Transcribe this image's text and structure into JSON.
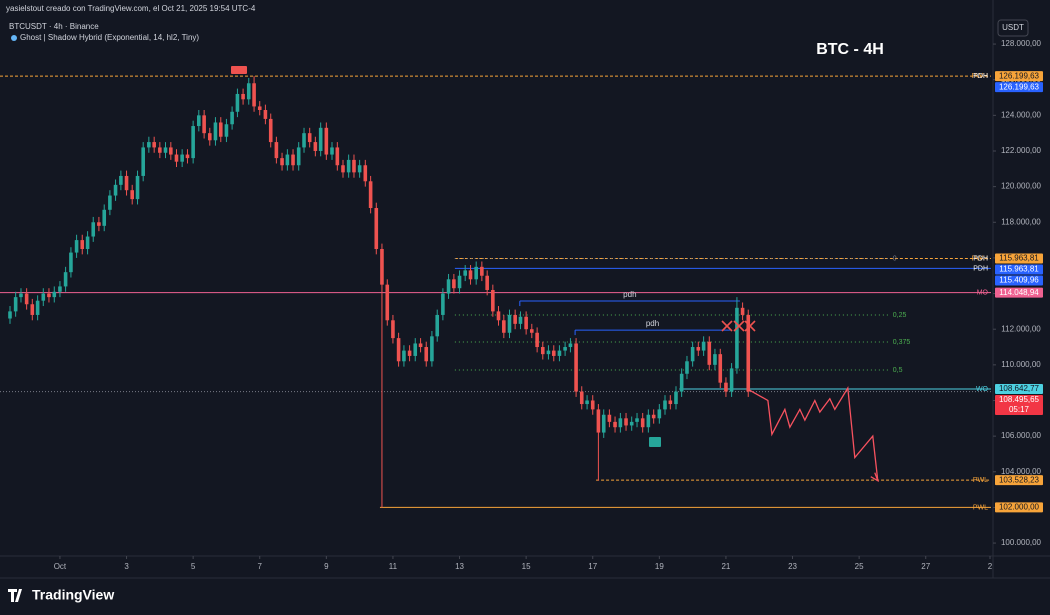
{
  "header": {
    "author_line": "yasielstout creado con TradingView.com, el Oct 21, 2025 19:54 UTC-4",
    "symbol_line": "BTCUSDT · 4h · Binance",
    "indicator": "Ghost | Shadow Hybrid (Exponential, 14, hl2, Tiny)"
  },
  "footer": {
    "brand": "TradingView"
  },
  "chart_data": {
    "type": "candlestick",
    "title": "BTC - 4H",
    "currency": "USDT",
    "up_color": "#26a69a",
    "down_color": "#ef5350",
    "grid": false,
    "x": [
      -0.5,
      -0.33,
      -0.17,
      0,
      0.17,
      0.33,
      0.5,
      0.67,
      0.83,
      1,
      1.17,
      1.33,
      1.5,
      1.67,
      1.83,
      2,
      2.17,
      2.33,
      2.5,
      2.67,
      2.83,
      3,
      3.17,
      3.33,
      3.5,
      3.67,
      3.83,
      4,
      4.17,
      4.33,
      4.5,
      4.67,
      4.83,
      5,
      5.17,
      5.33,
      5.5,
      5.67,
      5.83,
      6,
      6.17,
      6.33,
      6.5,
      6.67,
      6.83,
      7,
      7.17,
      7.33,
      7.5,
      7.67,
      7.83,
      8,
      8.17,
      8.33,
      8.5,
      8.67,
      8.83,
      9,
      9.17,
      9.33,
      9.5,
      9.67,
      9.83,
      10,
      10.17,
      10.33,
      10.5,
      10.67,
      10.83,
      11,
      11.17,
      11.33,
      11.5,
      11.67,
      11.83,
      12,
      12.17,
      12.33,
      12.5,
      12.67,
      12.83,
      13,
      13.17,
      13.33,
      13.5,
      13.67,
      13.83,
      14,
      14.17,
      14.33,
      14.5,
      14.67,
      14.83,
      15,
      15.17,
      15.33,
      15.5,
      15.67,
      15.83,
      16,
      16.17,
      16.33,
      16.5,
      16.67,
      16.83,
      17,
      17.17,
      17.33,
      17.5,
      17.67,
      17.83,
      18,
      18.17,
      18.33,
      18.5,
      18.67,
      18.83,
      19,
      19.17,
      19.33,
      19.5,
      19.67,
      19.83,
      20,
      20.17,
      20.33,
      20.5,
      20.67,
      20.83,
      21,
      21.17,
      21.33,
      21.5,
      21.67
    ],
    "open": [
      112600,
      113000,
      113800,
      114000,
      113400,
      112800,
      113600,
      114000,
      113800,
      114100,
      114400,
      115200,
      116300,
      117000,
      116500,
      117200,
      118000,
      117800,
      118700,
      119500,
      120100,
      120600,
      119800,
      119300,
      120600,
      122200,
      122500,
      122200,
      121900,
      122200,
      121800,
      121400,
      121800,
      121600,
      123400,
      124000,
      123000,
      122600,
      123600,
      122800,
      123500,
      124200,
      125200,
      124900,
      125800,
      124500,
      124300,
      123800,
      122500,
      121600,
      121200,
      121800,
      121200,
      122200,
      123000,
      122500,
      122000,
      123300,
      121800,
      122200,
      121200,
      120800,
      121500,
      120800,
      121200,
      120300,
      118800,
      116500,
      114500,
      112500,
      111500,
      110200,
      110800,
      110500,
      111200,
      111000,
      110200,
      111600,
      112800,
      114000,
      114800,
      114300,
      115000,
      115300,
      114800,
      115500,
      115000,
      114200,
      113000,
      112500,
      111800,
      112800,
      112300,
      112700,
      112000,
      111800,
      111000,
      110600,
      110800,
      110500,
      110800,
      111000,
      111200,
      108500,
      107800,
      108000,
      107500,
      106200,
      107200,
      106800,
      106500,
      107000,
      106600,
      106800,
      107000,
      106500,
      107200,
      107000,
      107500,
      108000,
      107800,
      108500,
      109500,
      110200,
      111000,
      110800,
      111300,
      110000,
      110600,
      109000,
      108500,
      109800,
      113200,
      112800
    ],
    "high": [
      113300,
      114100,
      114300,
      114300,
      113700,
      113900,
      114300,
      114300,
      114400,
      114700,
      115500,
      116600,
      117300,
      117300,
      117500,
      118300,
      118300,
      119000,
      119800,
      120400,
      120900,
      120900,
      120100,
      120900,
      122500,
      122800,
      122800,
      122500,
      122500,
      122500,
      122100,
      122100,
      122100,
      123700,
      124300,
      124300,
      123300,
      123900,
      123900,
      123800,
      124500,
      125500,
      125500,
      126100,
      126200,
      124800,
      124600,
      124100,
      122800,
      121900,
      122100,
      122100,
      122500,
      123300,
      123300,
      122800,
      123600,
      123600,
      122500,
      122500,
      121500,
      121800,
      121800,
      121500,
      121500,
      120600,
      119100,
      116800,
      114800,
      112800,
      111800,
      111100,
      111100,
      111500,
      111500,
      111300,
      111900,
      113100,
      114300,
      115100,
      115100,
      115300,
      115600,
      115600,
      115800,
      115800,
      115300,
      114500,
      113300,
      112800,
      113100,
      113100,
      113000,
      113000,
      112300,
      112100,
      111300,
      111100,
      111100,
      111100,
      111300,
      111500,
      111500,
      108800,
      108300,
      108300,
      107800,
      107500,
      107500,
      107100,
      107300,
      107300,
      107100,
      107300,
      107300,
      107500,
      107500,
      107800,
      108300,
      108300,
      108800,
      109800,
      110500,
      111300,
      111300,
      111600,
      111600,
      110900,
      110900,
      109300,
      110100,
      113800,
      113500,
      113100
    ],
    "low": [
      112300,
      112700,
      113500,
      113100,
      112500,
      112500,
      113300,
      113500,
      113500,
      113800,
      114100,
      114900,
      116000,
      116200,
      116200,
      116900,
      117500,
      117500,
      118400,
      119200,
      119800,
      119500,
      119000,
      119000,
      120300,
      121900,
      121900,
      121600,
      121600,
      121500,
      121100,
      121100,
      121300,
      121300,
      123100,
      122700,
      122300,
      122300,
      122500,
      122500,
      123200,
      123900,
      124600,
      124600,
      124200,
      124000,
      123500,
      122200,
      121300,
      120900,
      120900,
      120900,
      120900,
      121900,
      122200,
      121700,
      121700,
      121500,
      121500,
      120900,
      120500,
      120500,
      120500,
      120500,
      120000,
      118500,
      116200,
      102000,
      112200,
      111200,
      109900,
      109900,
      110200,
      110200,
      110700,
      109900,
      109900,
      111300,
      112500,
      113700,
      114000,
      114000,
      114700,
      114500,
      114500,
      114700,
      113900,
      112700,
      112200,
      111500,
      111500,
      112000,
      112000,
      111700,
      111500,
      110700,
      110300,
      110300,
      110200,
      110200,
      110500,
      110700,
      108200,
      107500,
      107500,
      107200,
      103500,
      105900,
      106500,
      106200,
      106200,
      106300,
      106300,
      106500,
      106200,
      106200,
      106700,
      106700,
      107200,
      107500,
      107500,
      108200,
      109200,
      109900,
      110500,
      110500,
      109700,
      109700,
      108700,
      108200,
      108200,
      109500,
      112500,
      108200
    ],
    "close": [
      113000,
      113800,
      114000,
      113400,
      112800,
      113600,
      114000,
      113800,
      114100,
      114400,
      115200,
      116300,
      117000,
      116500,
      117200,
      118000,
      117800,
      118700,
      119500,
      120100,
      120600,
      119800,
      119300,
      120600,
      122200,
      122500,
      122200,
      121900,
      122200,
      121800,
      121400,
      121800,
      121600,
      123400,
      124000,
      123000,
      122600,
      123600,
      122800,
      123500,
      124200,
      125200,
      124900,
      125800,
      124500,
      124300,
      123800,
      122500,
      121600,
      121200,
      121800,
      121200,
      122200,
      123000,
      122500,
      122000,
      123300,
      121800,
      122200,
      121200,
      120800,
      121500,
      120800,
      121200,
      120300,
      118800,
      116500,
      114500,
      112500,
      111500,
      110200,
      110800,
      110500,
      111200,
      111000,
      110200,
      111600,
      112800,
      114000,
      114800,
      114300,
      115000,
      115300,
      114800,
      115500,
      115000,
      114200,
      113000,
      112500,
      111800,
      112800,
      112300,
      112700,
      112000,
      111800,
      111000,
      110600,
      110800,
      110500,
      110800,
      111000,
      111200,
      108500,
      107800,
      108000,
      107500,
      106200,
      107200,
      106800,
      106500,
      107000,
      106600,
      106800,
      107000,
      106500,
      107200,
      107000,
      107500,
      108000,
      107800,
      108500,
      109500,
      110200,
      111000,
      110800,
      111300,
      110000,
      110600,
      109000,
      108500,
      109800,
      113200,
      112800,
      108500
    ],
    "xlim": [
      -0.8,
      29.02
    ],
    "xticks": [
      {
        "value": 1,
        "label": "Oct"
      },
      3,
      5,
      7,
      9,
      11,
      13,
      15,
      17,
      19,
      21,
      23,
      25,
      27,
      {
        "value": 28.93,
        "label": "2"
      }
    ],
    "ylim": [
      99330,
      129350
    ],
    "yticks": [
      {
        "value": 100000,
        "label": "100.000,00"
      },
      {
        "value": 102000,
        "label": "102.000,00"
      },
      {
        "value": 104000,
        "label": "104.000,00"
      },
      {
        "value": 106000,
        "label": "106.000,00"
      },
      {
        "value": 108000,
        "label": "108.000,00"
      },
      {
        "value": 110000,
        "label": "110.000,00"
      },
      {
        "value": 112000,
        "label": "112.000,00"
      },
      {
        "value": 114000,
        "label": "114.000,00"
      },
      {
        "value": 116000,
        "label": "116.000,00"
      },
      {
        "value": 118000,
        "label": "118.000,00"
      },
      {
        "value": 120000,
        "label": "120.000,00"
      },
      {
        "value": 122000,
        "label": "122.000,00"
      },
      {
        "value": 124000,
        "label": "124.000,00"
      },
      {
        "value": 126000,
        "label": "126.000,00"
      },
      {
        "value": 128000,
        "label": "128.000,00"
      }
    ],
    "levels": [
      {
        "name": "PWH",
        "price": {
          "value": 126199.63,
          "label": "126.199,63"
        },
        "color": "#f7a43a",
        "style": "dashed"
      },
      {
        "name": "PDH",
        "price": {
          "value": 126199.63,
          "label": "126.199,63"
        },
        "color": "#2962ff",
        "style": "none"
      },
      {
        "name": "PWH",
        "price": {
          "value": 115963.81,
          "label": "115.963,81"
        },
        "color": "#f7a43a",
        "style": "dashed",
        "from": 12.86
      },
      {
        "name": "PDH",
        "price": {
          "value": 115963.81,
          "label": "115.963,81"
        },
        "color": "#2962ff",
        "style": "none",
        "from": 12.86
      },
      {
        "name": "PDH",
        "price": {
          "value": 115409.96,
          "label": "115.409,96"
        },
        "color": "#2962ff",
        "style": "solid",
        "from": 12.86
      },
      {
        "name": "MO",
        "price": {
          "value": 114048.94,
          "label": "114.048,94"
        },
        "color": "#f06292",
        "style": "solid"
      },
      {
        "name": "WO",
        "price": {
          "value": 108642.77,
          "label": "108.642,77"
        },
        "color": "#4dd0e1",
        "style": "solid",
        "from": 19.6
      },
      {
        "name": "PWL",
        "price": {
          "value": 103528.23,
          "label": "103.528,23"
        },
        "color": "#f7a43a",
        "style": "dashed",
        "from": 17.1
      },
      {
        "name": "PWL",
        "price": {
          "value": 102000,
          "label": "102.000,00"
        },
        "color": "#f7a43a",
        "style": "solid",
        "from": 10.61
      }
    ],
    "last_price": {
      "value": 108495.65,
      "label": "108.495,65",
      "countdown": "05:17",
      "color": "#f23645"
    },
    "fib": {
      "from": 12.86,
      "to": 25.92,
      "color": "#4caf50",
      "levels": [
        {
          "label": "0",
          "price": 115963.81
        },
        {
          "label": "0,25",
          "price": 112800
        },
        {
          "label": "0,375",
          "price": 111280
        },
        {
          "label": "0,5",
          "price": 109710
        }
      ]
    },
    "pdh_lines": [
      {
        "label": "pdh",
        "price": 113580,
        "from": 14.81,
        "to": 21.42
      },
      {
        "label": "pdh",
        "price": 111950,
        "from": 16.47,
        "to": 21.12
      }
    ],
    "projection": {
      "color": "#f7525f",
      "x": [
        21.69,
        22.26,
        22.38,
        22.77,
        22.92,
        23.22,
        23.37,
        23.67,
        23.82,
        24.12,
        24.27,
        24.66,
        24.87,
        25.41,
        25.56
      ],
      "values": [
        108600,
        108000,
        106100,
        107500,
        106500,
        107500,
        106900,
        108000,
        107350,
        108100,
        107500,
        108700,
        104800,
        106000,
        103500
      ]
    }
  }
}
